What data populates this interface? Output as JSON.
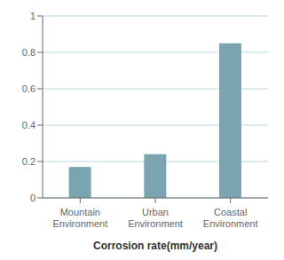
{
  "chart_data": {
    "type": "bar",
    "xlabel": "Corrosion rate(mm/year)",
    "categories": [
      "Mountain\nEnvironment",
      "Urban\nEnvironment",
      "Coastal\nEnvironment"
    ],
    "values": [
      0.17,
      0.24,
      0.85
    ],
    "color": "#7aa4b0",
    "ylim": [
      0,
      1.0
    ],
    "yticks": [
      0,
      0.2,
      0.4,
      0.6,
      0.8,
      1.0
    ],
    "grid": true
  }
}
